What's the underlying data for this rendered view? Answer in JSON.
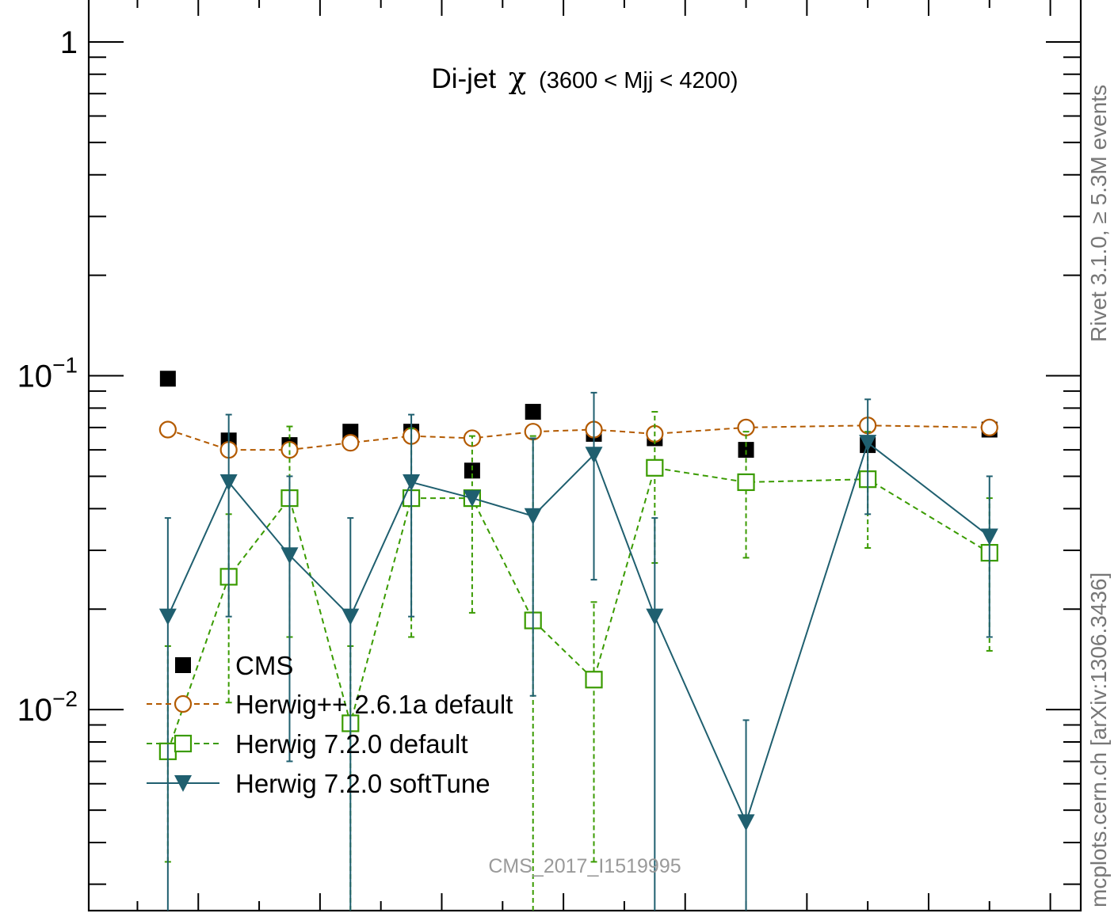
{
  "chart_data": {
    "type": "scatter",
    "title": "Di-jet",
    "title_symbol": "χ",
    "title_range": "(3600 < Mjj < 4200)",
    "xlabel": "",
    "ylabel": "",
    "y_scale": "log",
    "ylim": [
      0.0025,
      1.35
    ],
    "y_ticks": [
      {
        "value": 1,
        "label": "1"
      },
      {
        "value": 0.1,
        "label": "10",
        "exp": "−1"
      },
      {
        "value": 0.01,
        "label": "10",
        "exp": "−2"
      }
    ],
    "xlim": [
      0.2,
      16.5
    ],
    "x": [
      1.5,
      2.5,
      3.5,
      4.5,
      5.5,
      6.5,
      7.5,
      8.5,
      9.5,
      11,
      13,
      15
    ],
    "watermark": "CMS_2017_I1519995",
    "side_label_top": "Rivet 3.1.0, ≥ 5.3M events",
    "side_label_bottom": "mcplots.cern.ch [arXiv:1306.3436]",
    "legend_position": "bottom-left",
    "colors": {
      "cms": "#000000",
      "herwigpp": "#b35a00",
      "herwig720": "#3a9b00",
      "softtune": "#1f5f6f"
    },
    "series": [
      {
        "name": "CMS",
        "style": "filled-square",
        "y": [
          0.098,
          0.064,
          0.062,
          0.068,
          0.068,
          0.052,
          0.078,
          0.067,
          0.065,
          0.06,
          0.062,
          0.069
        ]
      },
      {
        "name": "Herwig++ 2.6.1a default",
        "style": "open-circle-dashed",
        "y": [
          0.069,
          0.06,
          0.06,
          0.063,
          0.066,
          0.065,
          0.068,
          0.069,
          0.067,
          0.07,
          0.071,
          0.07
        ],
        "err_lo": [
          0.069,
          0.06,
          0.06,
          0.063,
          0.066,
          0.065,
          0.068,
          0.069,
          0.067,
          0.07,
          0.071,
          0.07
        ],
        "err_hi": [
          0.069,
          0.06,
          0.06,
          0.063,
          0.066,
          0.065,
          0.068,
          0.069,
          0.067,
          0.07,
          0.071,
          0.07
        ]
      },
      {
        "name": "Herwig 7.2.0 default",
        "style": "open-square-dashed",
        "y": [
          0.0075,
          0.025,
          0.043,
          0.0091,
          0.043,
          0.043,
          0.0185,
          0.0123,
          0.053,
          0.048,
          0.049,
          0.0295
        ],
        "err_lo": [
          0.0035,
          0.0105,
          0.0165,
          0.0025,
          0.0165,
          0.0195,
          0.0025,
          0.0035,
          0.0275,
          0.0285,
          0.0305,
          0.015
        ],
        "err_hi": [
          0.0155,
          0.0385,
          0.0705,
          0.0155,
          0.0695,
          0.066,
          0.066,
          0.021,
          0.078,
          0.068,
          0.068,
          0.043
        ]
      },
      {
        "name": "Herwig 7.2.0 softTune",
        "style": "filled-triangle-solid",
        "y": [
          0.019,
          0.048,
          0.029,
          0.019,
          0.048,
          0.043,
          0.038,
          0.058,
          0.019,
          0.0046,
          0.063,
          0.033
        ],
        "err_lo": [
          0.0025,
          0.019,
          0.007,
          0.0025,
          0.019,
          0.043,
          0.011,
          0.0245,
          0.0025,
          0.0025,
          0.0385,
          0.0165
        ],
        "err_hi": [
          0.0375,
          0.0765,
          0.05,
          0.0375,
          0.0765,
          0.043,
          0.065,
          0.089,
          0.0375,
          0.0093,
          0.085,
          0.05
        ]
      }
    ]
  }
}
